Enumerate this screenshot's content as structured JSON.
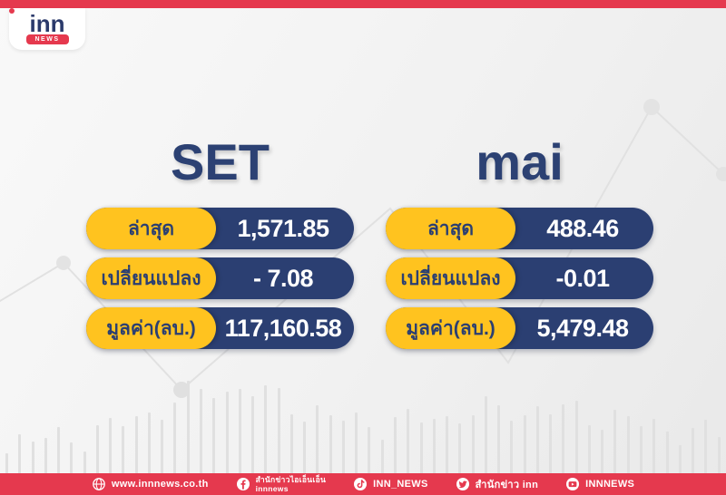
{
  "brand": {
    "logo_word": "inn",
    "logo_news": "NEWS"
  },
  "columns": [
    {
      "title": "SET",
      "rows": [
        {
          "label": "ล่าสุด",
          "value": "1,571.85"
        },
        {
          "label": "เปลี่ยนแปลง",
          "value": "- 7.08"
        },
        {
          "label": "มูลค่า(ลบ.)",
          "value": "117,160.58"
        }
      ]
    },
    {
      "title": "mai",
      "rows": [
        {
          "label": "ล่าสุด",
          "value": "488.46"
        },
        {
          "label": "เปลี่ยนแปลง",
          "value": "-0.01"
        },
        {
          "label": "มูลค่า(ลบ.)",
          "value": "5,479.48"
        }
      ]
    }
  ],
  "footer": {
    "items": [
      {
        "icon": "globe-icon",
        "label": "www.innnews.co.th"
      },
      {
        "icon": "facebook-icon",
        "label": "สำนักข่าวไอเอ็นเอ็น",
        "label2": "innnews"
      },
      {
        "icon": "tiktok-icon",
        "label": "INN_NEWS"
      },
      {
        "icon": "twitter-icon",
        "label": "สำนักข่าว inn"
      },
      {
        "icon": "youtube-icon",
        "label": "INNNEWS"
      }
    ]
  },
  "colors": {
    "red": "#E5394E",
    "navy": "#2B3F72",
    "yellow": "#FFC31F",
    "background": "#F1F1F1",
    "decoration_gray": "#E0E0E0"
  },
  "chart_data": {
    "type": "table",
    "tables": [
      {
        "name": "SET",
        "rows": [
          [
            "ล่าสุด",
            1571.85
          ],
          [
            "เปลี่ยนแปลง",
            -7.08
          ],
          [
            "มูลค่า(ลบ.)",
            117160.58
          ]
        ]
      },
      {
        "name": "mai",
        "rows": [
          [
            "ล่าสุด",
            488.46
          ],
          [
            "เปลี่ยนแปลง",
            -0.01
          ],
          [
            "มูลค่า(ลบ.)",
            5479.48
          ]
        ]
      }
    ]
  }
}
